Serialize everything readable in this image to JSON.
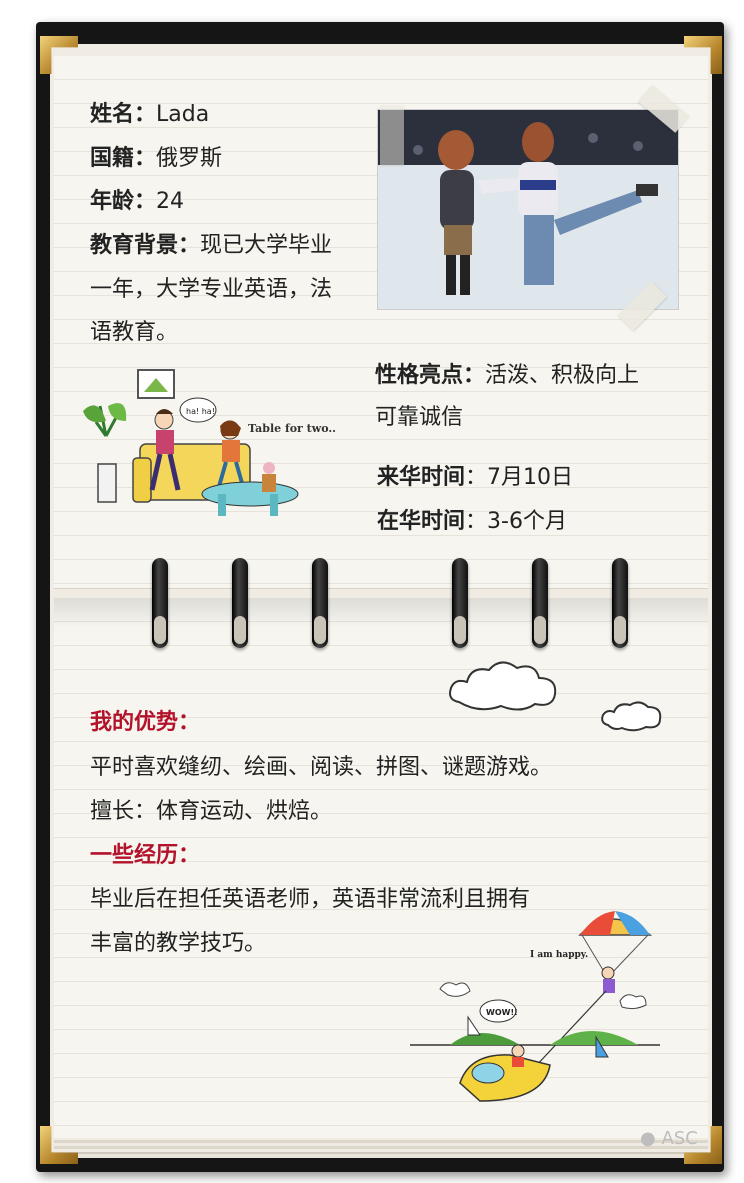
{
  "profile": {
    "name_label": "姓名：",
    "name_value": "Lada",
    "nationality_label": "国籍：",
    "nationality_value": "俄罗斯",
    "age_label": "年龄：",
    "age_value": "24",
    "education_label": "教育背景：",
    "education_line1": "现已大学毕业",
    "education_line2": "一年，大学专业英语，法",
    "education_line3": "语教育。"
  },
  "personality": {
    "label": "性格亮点：",
    "line1": "活泼、积极向上",
    "line2": "可靠诚信"
  },
  "arrival": {
    "label": "来华时间",
    "sep": "：",
    "value": "7月10日"
  },
  "stay": {
    "label": "在华时间",
    "sep": "：",
    "value": "3-6个月"
  },
  "strengths": {
    "heading": "我的优势：",
    "line1": "平时喜欢缝纫、绘画、阅读、拼图、谜题游戏。",
    "line2": "擅长：体育运动、烘焙。"
  },
  "experience": {
    "heading": "一些经历：",
    "line1": "毕业后在担任英语老师，英语非常流利且拥有",
    "line2": "丰富的教学技巧。"
  },
  "illustrations": {
    "couple_caption": "Table for two..",
    "couple_bubble": "ha! ha!",
    "parachute_caption": "I am happy.",
    "boat_bubble": "WOW!!"
  },
  "watermark": "ASC",
  "colors": {
    "accent_red": "#b3122b",
    "cover": "#151515",
    "page": "#f7f5ef",
    "gold": "#c9962f"
  }
}
